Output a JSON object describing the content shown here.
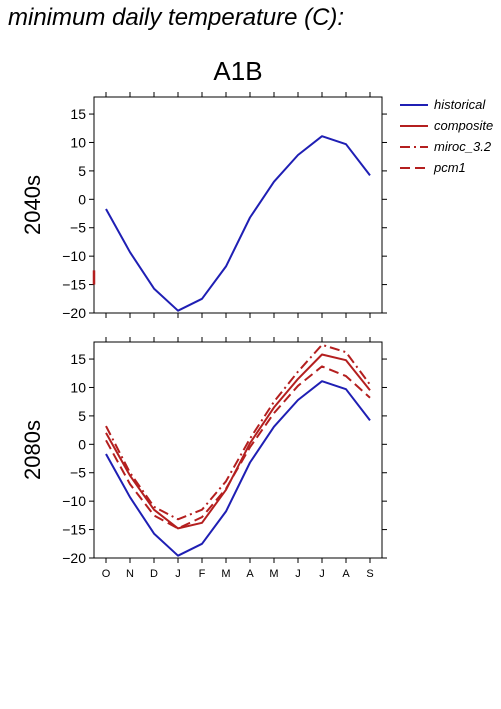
{
  "page_title": "minimum daily temperature (C):",
  "scenario_title": "A1B",
  "colors": {
    "historical": "#1f1fb4",
    "future": "#b41f1f",
    "axis": "#000000"
  },
  "legend": [
    {
      "label": "historical",
      "color": "#1f1fb4",
      "dash": "solid"
    },
    {
      "label": "composite",
      "color": "#b41f1f",
      "dash": "solid"
    },
    {
      "label": "miroc_3.2",
      "color": "#b41f1f",
      "dash": "dashdot"
    },
    {
      "label": "pcm1",
      "color": "#b41f1f",
      "dash": "dash"
    }
  ],
  "chart_data": [
    {
      "type": "line",
      "row_label": "2040s",
      "ylim": [
        -20,
        18
      ],
      "yticks": [
        -20,
        -15,
        -10,
        -5,
        0,
        5,
        10,
        15
      ],
      "categories": [
        "O",
        "N",
        "D",
        "J",
        "F",
        "M",
        "A",
        "M",
        "J",
        "J",
        "A",
        "S"
      ],
      "show_month_labels": false,
      "series": [
        {
          "name": "historical",
          "color": "#1f1fb4",
          "dash": "solid",
          "values": [
            -1.7,
            -9.3,
            -15.7,
            -19.6,
            -17.5,
            -11.8,
            -3.2,
            3.1,
            7.8,
            11.1,
            9.7,
            4.2
          ]
        }
      ],
      "annotations": [
        {
          "text": "",
          "note": "truncated red mark at left edge"
        }
      ]
    },
    {
      "type": "line",
      "row_label": "2080s",
      "ylim": [
        -20,
        18
      ],
      "yticks": [
        -20,
        -15,
        -10,
        -5,
        0,
        5,
        10,
        15
      ],
      "categories": [
        "O",
        "N",
        "D",
        "J",
        "F",
        "M",
        "A",
        "M",
        "J",
        "J",
        "A",
        "S"
      ],
      "show_month_labels": true,
      "series": [
        {
          "name": "historical",
          "color": "#1f1fb4",
          "dash": "solid",
          "values": [
            -1.7,
            -9.3,
            -15.7,
            -19.6,
            -17.5,
            -11.8,
            -3.2,
            3.1,
            7.8,
            11.1,
            9.7,
            4.2
          ]
        },
        {
          "name": "composite",
          "color": "#b41f1f",
          "dash": "solid",
          "values": [
            2.0,
            -5.5,
            -11.5,
            -14.8,
            -13.8,
            -8.0,
            0.2,
            6.5,
            11.5,
            15.8,
            14.8,
            9.5
          ]
        },
        {
          "name": "miroc_3.2",
          "color": "#b41f1f",
          "dash": "dashdot",
          "values": [
            3.2,
            -5.0,
            -11.0,
            -13.2,
            -11.5,
            -6.5,
            1.0,
            7.5,
            12.8,
            17.5,
            16.2,
            10.5
          ]
        },
        {
          "name": "pcm1",
          "color": "#b41f1f",
          "dash": "dash",
          "values": [
            0.7,
            -7.0,
            -12.5,
            -14.8,
            -12.8,
            -7.8,
            -0.5,
            5.5,
            10.3,
            13.7,
            12.0,
            8.2
          ]
        }
      ]
    }
  ]
}
